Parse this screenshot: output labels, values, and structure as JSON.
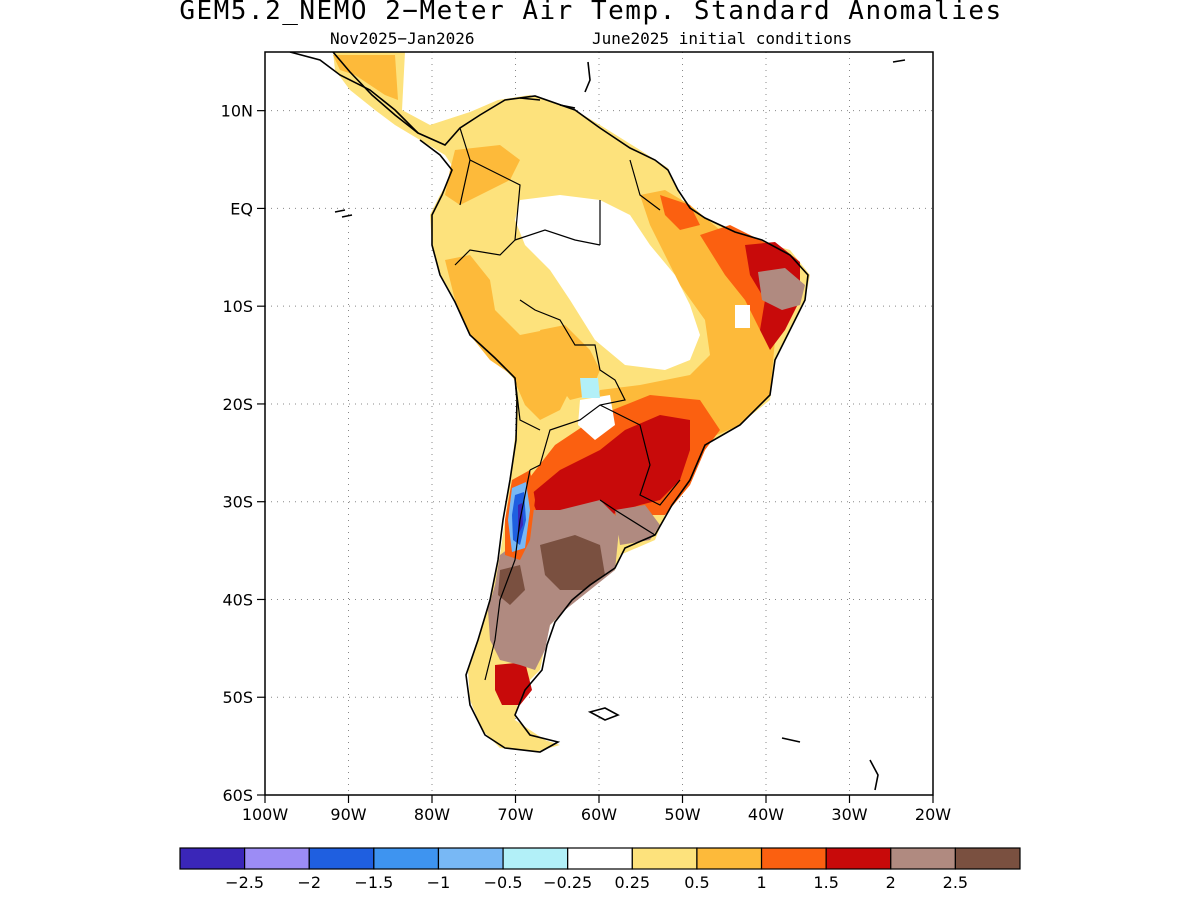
{
  "title": "GEM5.2_NEMO 2−Meter Air Temp. Standard Anomalies",
  "subtitle_period": "Nov2025−Jan2026",
  "subtitle_init": "June2025 initial conditions",
  "map": {
    "lon_range": [
      -100,
      -20
    ],
    "lat_range": [
      -60,
      16
    ],
    "lat_ticks": [
      {
        "value": 10,
        "label": "10N"
      },
      {
        "value": 0,
        "label": "EQ"
      },
      {
        "value": -10,
        "label": "10S"
      },
      {
        "value": -20,
        "label": "20S"
      },
      {
        "value": -30,
        "label": "30S"
      },
      {
        "value": -40,
        "label": "40S"
      },
      {
        "value": -50,
        "label": "50S"
      },
      {
        "value": -60,
        "label": "60S"
      }
    ],
    "lon_ticks": [
      {
        "value": -100,
        "label": "100W"
      },
      {
        "value": -90,
        "label": "90W"
      },
      {
        "value": -80,
        "label": "80W"
      },
      {
        "value": -70,
        "label": "70W"
      },
      {
        "value": -60,
        "label": "60W"
      },
      {
        "value": -50,
        "label": "50W"
      },
      {
        "value": -40,
        "label": "40W"
      },
      {
        "value": -30,
        "label": "30W"
      },
      {
        "value": -20,
        "label": "20W"
      }
    ],
    "grid": "dotted"
  },
  "colorbar": {
    "colors": [
      "#3a26b8",
      "#9c8cf5",
      "#1f5fe0",
      "#3e94f0",
      "#78b8f5",
      "#b2f0f8",
      "#ffffff",
      "#fde27c",
      "#fdba3a",
      "#fb6010",
      "#c80a0a",
      "#b08a80",
      "#7a5040"
    ],
    "labels": [
      "−2.5",
      "−2",
      "−1.5",
      "−1",
      "−0.5",
      "−0.25",
      "0.25",
      "0.5",
      "1",
      "1.5",
      "2",
      "2.5"
    ]
  }
}
